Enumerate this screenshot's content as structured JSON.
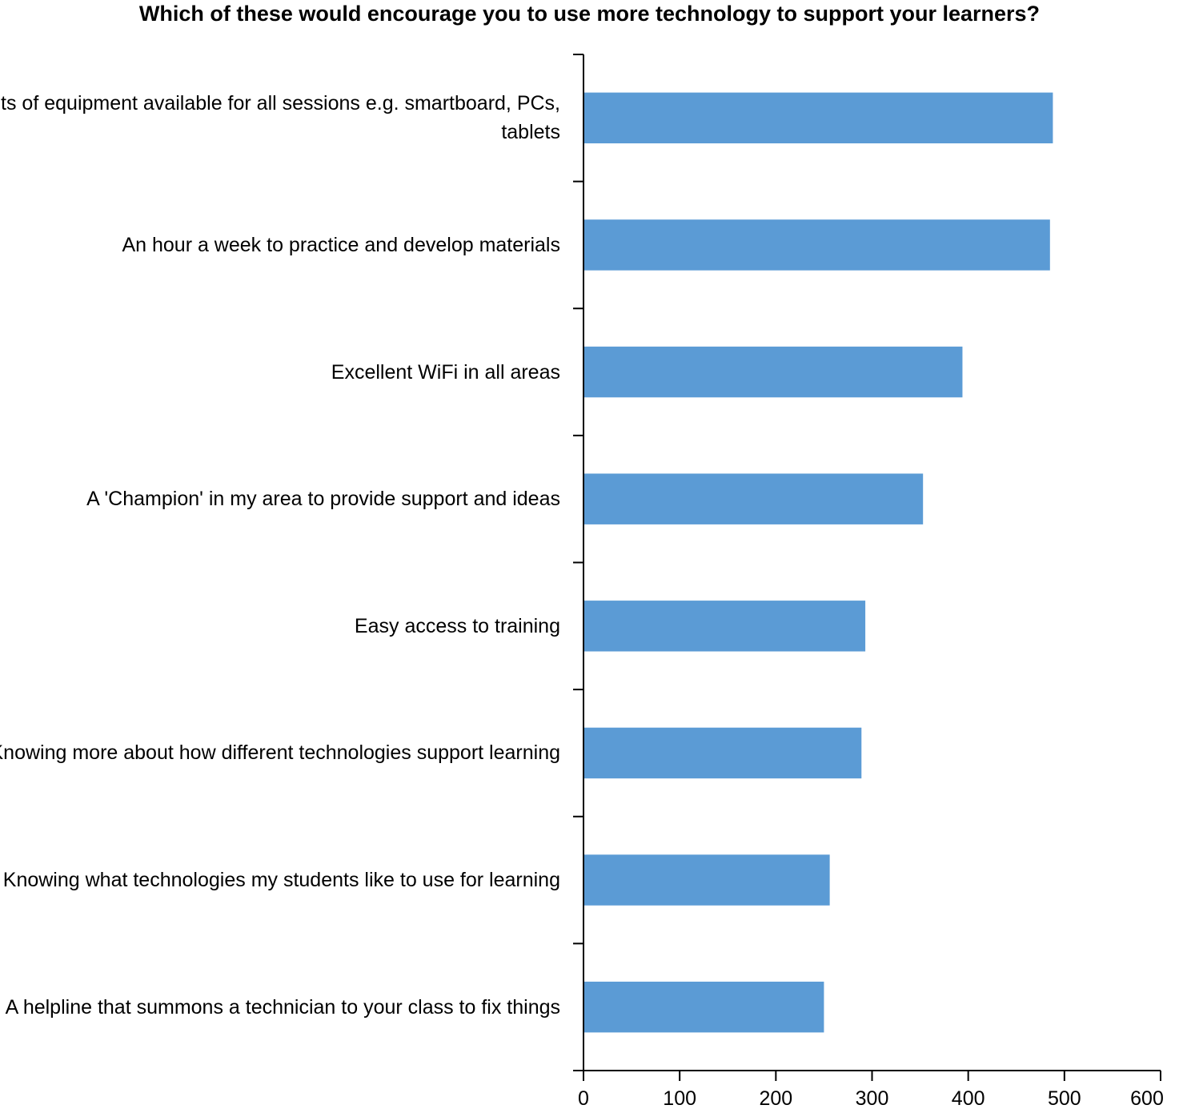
{
  "chart_data": {
    "type": "bar",
    "orientation": "horizontal",
    "title": "Which of these would encourage you to use more technology to support your learners?",
    "xlabel": "",
    "ylabel": "",
    "xlim": [
      0,
      600
    ],
    "xticks": [
      "0",
      "100",
      "200",
      "300",
      "400",
      "500",
      "600"
    ],
    "grid": false,
    "legend": "none",
    "bar_color": "#5B9BD5",
    "categories": [
      "Lots of equipment available for all sessions e.g. smartboard, PCs, tablets",
      "An hour a week to practice and develop materials",
      "Excellent WiFi in all areas",
      "A 'Champion' in my area to provide support and ideas",
      "Easy access to training",
      "Knowing more about how different technologies support learning",
      "Knowing what technologies my students like to use for learning",
      "A helpline that summons a technician to your class to fix things"
    ],
    "values": [
      488,
      485,
      394,
      353,
      293,
      289,
      256,
      250
    ]
  }
}
